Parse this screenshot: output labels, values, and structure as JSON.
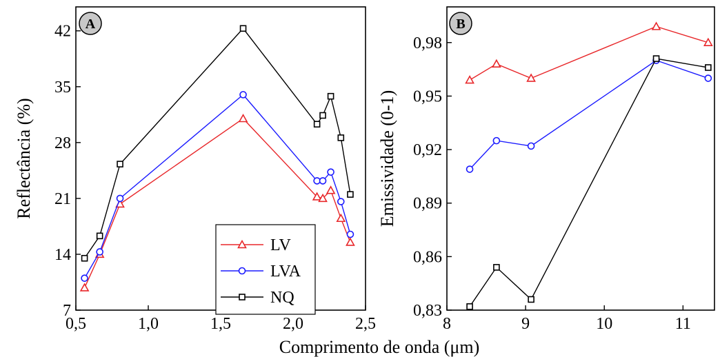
{
  "chart_data": [
    {
      "type": "line",
      "panel_label": "A",
      "xlabel": "Comprimento de onda (μm)",
      "ylabel": "Reflectância (%)",
      "xlim": [
        0.5,
        2.5
      ],
      "ylim": [
        7,
        45
      ],
      "x_ticks": [
        0.5,
        1.0,
        1.5,
        2.0,
        2.5
      ],
      "x_tick_labels": [
        "0,5",
        "1,0",
        "1,5",
        "2,0",
        "2,5"
      ],
      "y_ticks": [
        7,
        14,
        21,
        28,
        35,
        42
      ],
      "y_tick_labels": [
        "7",
        "14",
        "21",
        "28",
        "35",
        "42"
      ],
      "legend_position": "bottom-right",
      "series": [
        {
          "name": "LV",
          "color": "#e8272a",
          "marker": "triangle",
          "x": [
            0.56,
            0.665,
            0.805,
            1.655,
            2.165,
            2.205,
            2.26,
            2.33,
            2.395
          ],
          "y": [
            9.8,
            14.0,
            20.3,
            31.0,
            21.2,
            21.0,
            22.0,
            18.5,
            15.5
          ]
        },
        {
          "name": "LVA",
          "color": "#1a1aff",
          "marker": "circle",
          "x": [
            0.56,
            0.665,
            0.805,
            1.655,
            2.165,
            2.205,
            2.26,
            2.33,
            2.395
          ],
          "y": [
            11.0,
            14.3,
            21.0,
            34.0,
            23.2,
            23.2,
            24.3,
            20.6,
            16.5
          ]
        },
        {
          "name": "NQ",
          "color": "#000000",
          "marker": "square",
          "x": [
            0.56,
            0.665,
            0.805,
            1.655,
            2.165,
            2.205,
            2.26,
            2.33,
            2.395
          ],
          "y": [
            13.5,
            16.3,
            25.3,
            42.3,
            30.3,
            31.4,
            33.8,
            28.6,
            21.5
          ]
        }
      ]
    },
    {
      "type": "line",
      "panel_label": "B",
      "xlabel": "",
      "ylabel": "Emissividade (0-1)",
      "xlim": [
        8,
        11.4
      ],
      "ylim": [
        0.83,
        1.0
      ],
      "x_ticks": [
        8,
        9,
        10,
        11
      ],
      "x_tick_labels": [
        "8",
        "9",
        "10",
        "11"
      ],
      "y_ticks": [
        0.83,
        0.86,
        0.89,
        0.92,
        0.95,
        0.98
      ],
      "y_tick_labels": [
        "0,83",
        "0,86",
        "0,89",
        "0,92",
        "0,95",
        "0,98"
      ],
      "series": [
        {
          "name": "LV",
          "color": "#e8272a",
          "marker": "triangle",
          "x": [
            8.29,
            8.63,
            9.07,
            10.66,
            11.32
          ],
          "y": [
            0.959,
            0.968,
            0.96,
            0.989,
            0.98
          ]
        },
        {
          "name": "LVA",
          "color": "#1a1aff",
          "marker": "circle",
          "x": [
            8.29,
            8.63,
            9.07,
            10.66,
            11.32
          ],
          "y": [
            0.909,
            0.925,
            0.922,
            0.97,
            0.96
          ]
        },
        {
          "name": "NQ",
          "color": "#000000",
          "marker": "square",
          "x": [
            8.29,
            8.63,
            9.07,
            10.66,
            11.32
          ],
          "y": [
            0.832,
            0.854,
            0.836,
            0.971,
            0.966
          ]
        }
      ]
    }
  ]
}
